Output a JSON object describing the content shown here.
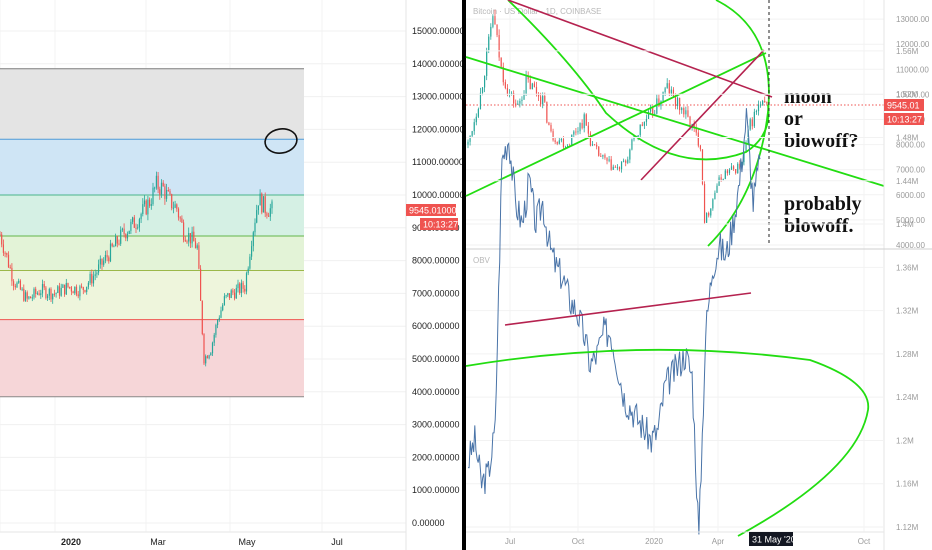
{
  "left_chart": {
    "y_ticks": [
      "15000.00000",
      "14000.00000",
      "13000.00000",
      "12000.00000",
      "11000.00000",
      "10000.00000",
      "9000.00000",
      "8000.00000",
      "7000.00000",
      "6000.00000",
      "5000.00000",
      "4000.00000",
      "3000.00000",
      "2000.00000",
      "1000.00000",
      "0.00000"
    ],
    "x_ticks": [
      "2020",
      "Mar",
      "May",
      "Jul"
    ],
    "price_tag": "9545.01000",
    "countdown": "10:13:27"
  },
  "right_top": {
    "title": "Bitcoin · US Dollar · 1D, COINBASE",
    "y_ticks": [
      "13000.00",
      "12000.00",
      "11000.00",
      "10000.00",
      "9000.00",
      "8000.00",
      "7000.00",
      "6000.00",
      "5000.00",
      "4000.00"
    ],
    "price_tag": "9545.01",
    "countdown": "10:13:27",
    "annotation_1": [
      "moon",
      "or",
      "blowoff?"
    ],
    "annotation_2": [
      "probably",
      "blowoff."
    ]
  },
  "right_bottom": {
    "title": "OBV",
    "y_ticks": [
      "1.56M",
      "1.52M",
      "1.48M",
      "1.44M",
      "1.4M",
      "1.36M",
      "1.32M",
      "1.28M",
      "1.24M",
      "1.2M",
      "1.16M",
      "1.12M"
    ]
  },
  "right_x_ticks": [
    "Jul",
    "Oct",
    "2020",
    "Apr",
    "Oct"
  ],
  "date_tag": "31 May '20",
  "colors": {
    "up": "#26a69a",
    "down": "#ef5350",
    "price_line": "#ef5350",
    "green_curve": "#22dd11",
    "trend": "#b5224f",
    "obv": "#4a74a8"
  },
  "chart_data": [
    {
      "type": "candlestick",
      "title": "",
      "ylim": [
        0,
        15500
      ],
      "fib_zones": [
        {
          "from": 11700,
          "to": 13850,
          "color": "#e4e4e4"
        },
        {
          "from": 10000,
          "to": 11700,
          "color": "#cfe5f5"
        },
        {
          "from": 8750,
          "to": 10000,
          "color": "#d5f0e4"
        },
        {
          "from": 7700,
          "to": 8750,
          "color": "#e3f3d7"
        },
        {
          "from": 6200,
          "to": 7700,
          "color": "#eef5dc"
        },
        {
          "from": 3850,
          "to": 6200,
          "color": "#f6d6d8"
        }
      ],
      "fib_lines": [
        13850,
        11700,
        10000,
        8750,
        7700,
        6200,
        3850
      ],
      "close_path": [
        [
          0,
          8800
        ],
        [
          4,
          7400
        ],
        [
          8,
          6800
        ],
        [
          12,
          7100
        ],
        [
          16,
          7000
        ],
        [
          20,
          7200
        ],
        [
          24,
          7100
        ],
        [
          28,
          7600
        ],
        [
          32,
          8200
        ],
        [
          36,
          8800
        ],
        [
          40,
          9200
        ],
        [
          44,
          9800
        ],
        [
          46,
          10300
        ],
        [
          48,
          10200
        ],
        [
          50,
          9800
        ],
        [
          52,
          9600
        ],
        [
          54,
          8900
        ],
        [
          56,
          8700
        ],
        [
          58,
          8400
        ],
        [
          60,
          5000
        ],
        [
          62,
          5300
        ],
        [
          64,
          6200
        ],
        [
          66,
          6800
        ],
        [
          68,
          7000
        ],
        [
          70,
          7100
        ],
        [
          72,
          7200
        ],
        [
          74,
          8700
        ],
        [
          76,
          9900
        ],
        [
          78,
          9600
        ],
        [
          80,
          9545
        ]
      ]
    },
    {
      "type": "candlestick",
      "title": "Bitcoin · US Dollar · 1D, COINBASE",
      "ylim": [
        3900,
        13800
      ],
      "close_path": [
        [
          0,
          8000
        ],
        [
          3,
          10000
        ],
        [
          5,
          12000
        ],
        [
          6,
          13200
        ],
        [
          8,
          11000
        ],
        [
          10,
          10000
        ],
        [
          12,
          9500
        ],
        [
          14,
          10500
        ],
        [
          16,
          10200
        ],
        [
          18,
          9800
        ],
        [
          20,
          8400
        ],
        [
          22,
          8200
        ],
        [
          24,
          8000
        ],
        [
          26,
          8600
        ],
        [
          28,
          9000
        ],
        [
          30,
          7900
        ],
        [
          32,
          7500
        ],
        [
          34,
          7200
        ],
        [
          36,
          7000
        ],
        [
          38,
          7300
        ],
        [
          40,
          8200
        ],
        [
          42,
          8800
        ],
        [
          44,
          9200
        ],
        [
          46,
          9700
        ],
        [
          48,
          10300
        ],
        [
          50,
          9700
        ],
        [
          52,
          9300
        ],
        [
          54,
          8700
        ],
        [
          56,
          8000
        ],
        [
          57,
          5000
        ],
        [
          58,
          5300
        ],
        [
          60,
          6400
        ],
        [
          62,
          6900
        ],
        [
          64,
          7000
        ],
        [
          66,
          7200
        ],
        [
          68,
          8800
        ],
        [
          70,
          9500
        ],
        [
          72,
          9545
        ]
      ],
      "price_line": 9545.01
    },
    {
      "type": "line",
      "title": "OBV",
      "ylim": [
        1.11,
        1.58
      ],
      "series": [
        {
          "values": [
            1.18,
            1.2,
            1.16,
            1.17,
            1.21,
            1.46,
            1.48,
            1.42,
            1.4,
            1.44,
            1.4,
            1.42,
            1.38,
            1.36,
            1.35,
            1.33,
            1.32,
            1.3,
            1.27,
            1.28,
            1.3,
            1.3,
            1.27,
            1.24,
            1.23,
            1.22,
            1.21,
            1.2,
            1.21,
            1.25,
            1.26,
            1.27,
            1.28,
            1.26,
            1.11,
            1.3,
            1.36,
            1.38,
            1.37,
            1.4,
            1.44,
            1.5,
            1.42,
            1.46
          ]
        }
      ]
    }
  ]
}
